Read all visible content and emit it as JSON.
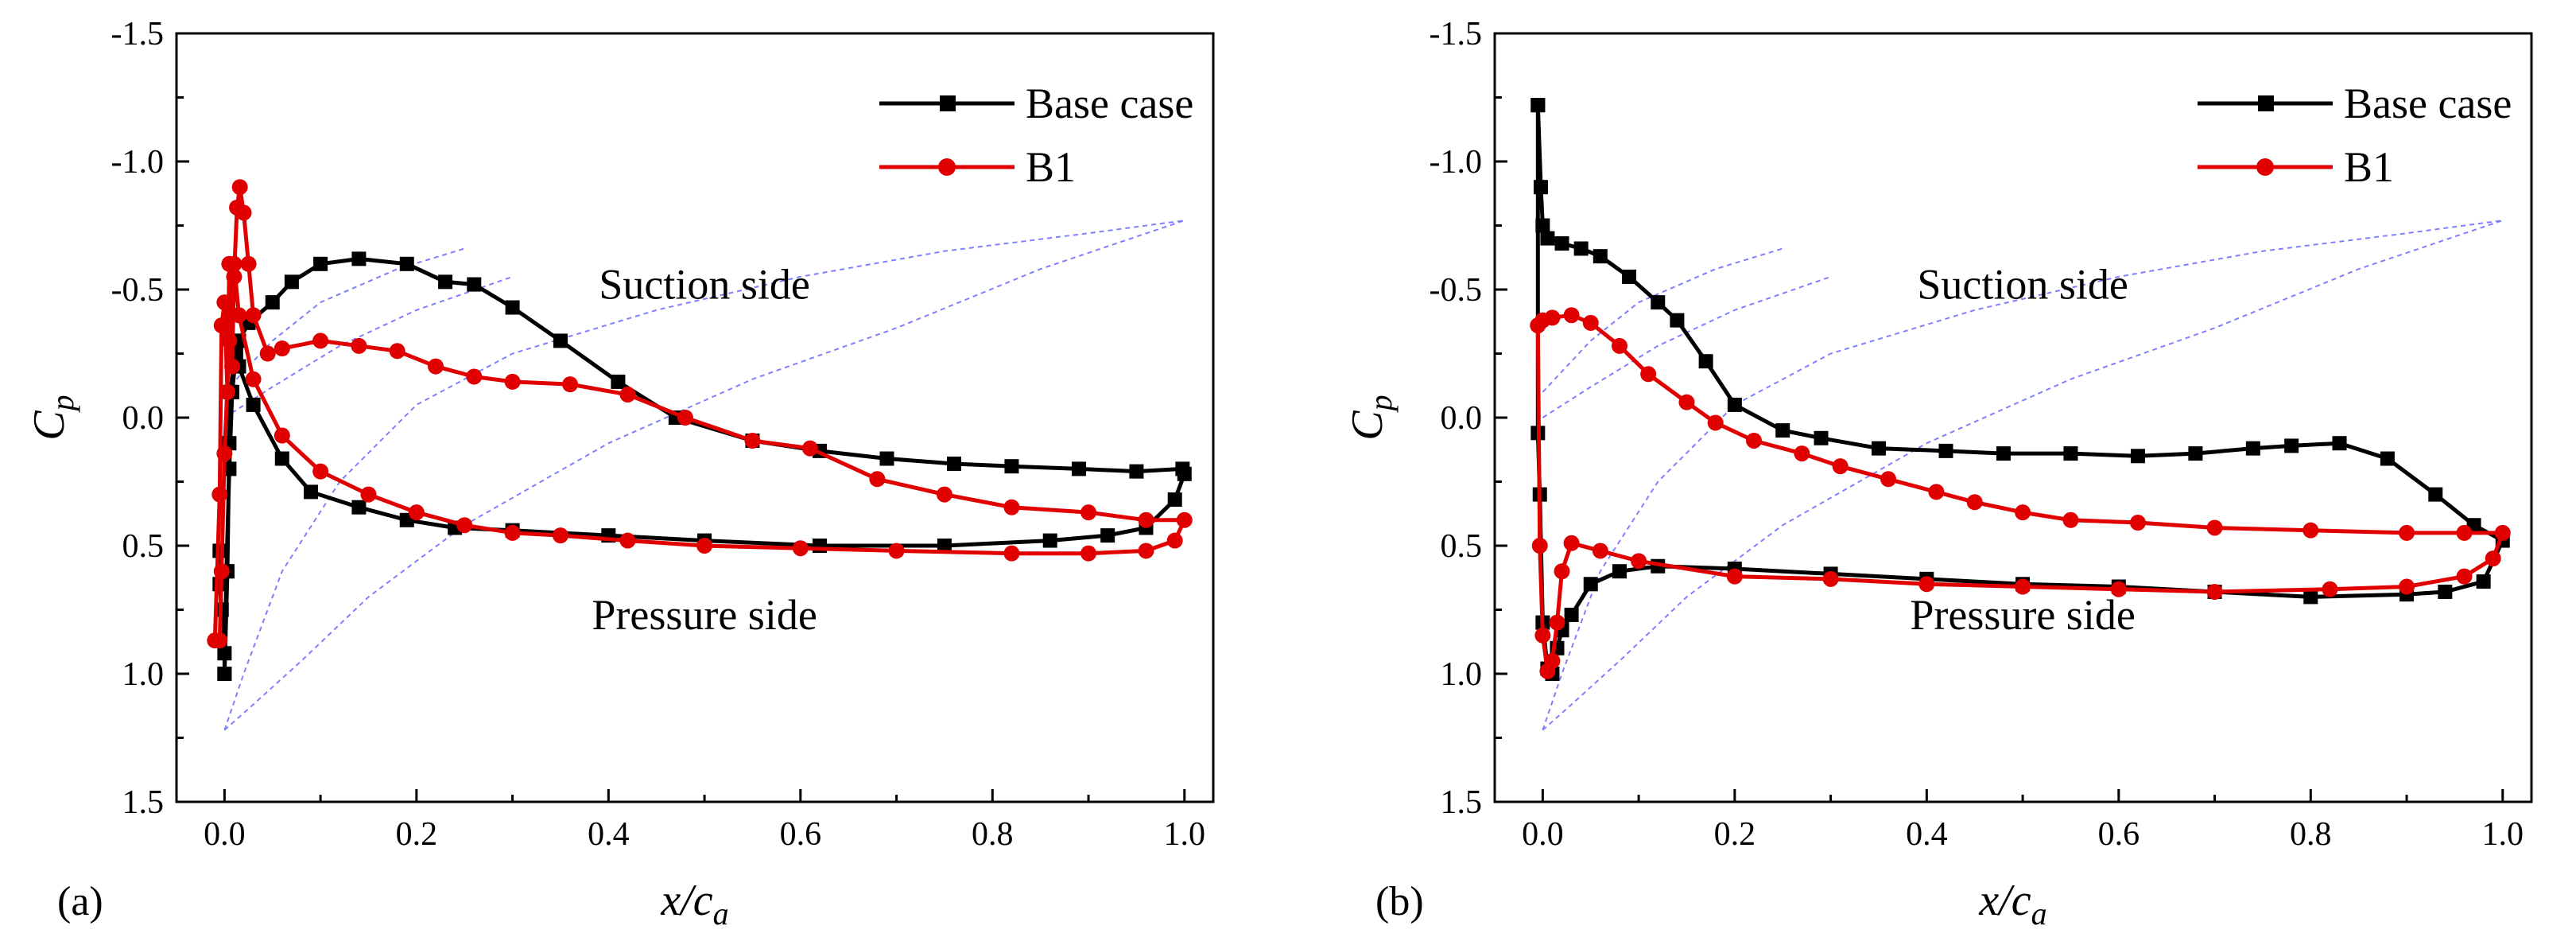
{
  "chart_data": [
    {
      "type": "line",
      "panel_label": "(a)",
      "xlabel": "x/c",
      "xlabel_sub": "a",
      "ylabel": "C",
      "ylabel_sub": "p",
      "xlim": [
        -0.05,
        1.03
      ],
      "ylim": [
        -1.5,
        1.5
      ],
      "y_inverted": true,
      "x_ticks": [
        "0.0",
        "0.2",
        "0.4",
        "0.6",
        "0.8",
        "1.0"
      ],
      "y_ticks": [
        "-1.5",
        "-1.0",
        "-0.5",
        "0.0",
        "0.5",
        "1.0",
        "1.5"
      ],
      "grid": false,
      "legend_position": "top-right",
      "annotations": [
        "Suction side",
        "Pressure side"
      ],
      "series": [
        {
          "name": "Base case",
          "color": "#000000",
          "marker": "square",
          "points": [
            [
              -0.005,
              0.52
            ],
            [
              -0.005,
              0.65
            ],
            [
              -0.003,
              0.75
            ],
            [
              0.0,
              0.92
            ],
            [
              0.0,
              1.0
            ],
            [
              0.003,
              0.6
            ],
            [
              0.005,
              0.1
            ],
            [
              0.006,
              -0.1
            ],
            [
              0.01,
              -0.22
            ],
            [
              0.015,
              -0.3
            ],
            [
              0.025,
              -0.37
            ],
            [
              0.05,
              -0.45
            ],
            [
              0.07,
              -0.53
            ],
            [
              0.1,
              -0.6
            ],
            [
              0.14,
              -0.62
            ],
            [
              0.19,
              -0.6
            ],
            [
              0.23,
              -0.53
            ],
            [
              0.26,
              -0.52
            ],
            [
              0.3,
              -0.43
            ],
            [
              0.35,
              -0.3
            ],
            [
              0.41,
              -0.14
            ],
            [
              0.47,
              0.0
            ],
            [
              0.55,
              0.09
            ],
            [
              0.62,
              0.13
            ],
            [
              0.69,
              0.16
            ],
            [
              0.76,
              0.18
            ],
            [
              0.82,
              0.19
            ],
            [
              0.89,
              0.2
            ],
            [
              0.95,
              0.21
            ],
            [
              0.998,
              0.2
            ],
            [
              1.0,
              0.22
            ],
            [
              0.99,
              0.32
            ],
            [
              0.96,
              0.43
            ],
            [
              0.92,
              0.46
            ],
            [
              0.86,
              0.48
            ],
            [
              0.75,
              0.5
            ],
            [
              0.62,
              0.5
            ],
            [
              0.5,
              0.48
            ],
            [
              0.4,
              0.46
            ],
            [
              0.3,
              0.44
            ],
            [
              0.24,
              0.43
            ],
            [
              0.19,
              0.4
            ],
            [
              0.14,
              0.35
            ],
            [
              0.09,
              0.29
            ],
            [
              0.06,
              0.16
            ],
            [
              0.03,
              -0.05
            ],
            [
              0.015,
              -0.2
            ],
            [
              0.01,
              -0.3
            ],
            [
              0.012,
              -0.25
            ],
            [
              0.008,
              -0.1
            ],
            [
              0.005,
              0.2
            ],
            [
              0.002,
              0.6
            ],
            [
              0.0,
              1.0
            ]
          ]
        },
        {
          "name": "B1",
          "color": "#e00000",
          "marker": "circle",
          "points": [
            [
              -0.01,
              0.87
            ],
            [
              -0.005,
              0.3
            ],
            [
              -0.003,
              -0.36
            ],
            [
              0.0,
              -0.45
            ],
            [
              0.003,
              -0.1
            ],
            [
              0.005,
              -0.6
            ],
            [
              0.008,
              -0.2
            ],
            [
              0.01,
              -0.55
            ],
            [
              0.013,
              -0.82
            ],
            [
              0.016,
              -0.9
            ],
            [
              0.02,
              -0.8
            ],
            [
              0.025,
              -0.6
            ],
            [
              0.03,
              -0.4
            ],
            [
              0.045,
              -0.25
            ],
            [
              0.06,
              -0.27
            ],
            [
              0.1,
              -0.3
            ],
            [
              0.14,
              -0.28
            ],
            [
              0.18,
              -0.26
            ],
            [
              0.22,
              -0.2
            ],
            [
              0.26,
              -0.16
            ],
            [
              0.3,
              -0.14
            ],
            [
              0.36,
              -0.13
            ],
            [
              0.42,
              -0.09
            ],
            [
              0.48,
              0.0
            ],
            [
              0.55,
              0.09
            ],
            [
              0.61,
              0.12
            ],
            [
              0.68,
              0.24
            ],
            [
              0.75,
              0.3
            ],
            [
              0.82,
              0.35
            ],
            [
              0.9,
              0.37
            ],
            [
              0.96,
              0.4
            ],
            [
              1.0,
              0.4
            ],
            [
              0.99,
              0.48
            ],
            [
              0.96,
              0.52
            ],
            [
              0.9,
              0.53
            ],
            [
              0.82,
              0.53
            ],
            [
              0.7,
              0.52
            ],
            [
              0.6,
              0.51
            ],
            [
              0.5,
              0.5
            ],
            [
              0.42,
              0.48
            ],
            [
              0.35,
              0.46
            ],
            [
              0.3,
              0.45
            ],
            [
              0.25,
              0.42
            ],
            [
              0.2,
              0.37
            ],
            [
              0.15,
              0.3
            ],
            [
              0.1,
              0.21
            ],
            [
              0.06,
              0.07
            ],
            [
              0.03,
              -0.15
            ],
            [
              0.015,
              -0.4
            ],
            [
              0.01,
              -0.6
            ],
            [
              0.005,
              -0.3
            ],
            [
              0.0,
              0.14
            ],
            [
              -0.003,
              0.6
            ],
            [
              -0.005,
              0.87
            ]
          ]
        }
      ]
    },
    {
      "type": "line",
      "panel_label": "(b)",
      "xlabel": "x/c",
      "xlabel_sub": "a",
      "ylabel": "C",
      "ylabel_sub": "p",
      "xlim": [
        -0.05,
        1.03
      ],
      "ylim": [
        -1.5,
        1.5
      ],
      "y_inverted": true,
      "x_ticks": [
        "0.0",
        "0.2",
        "0.4",
        "0.6",
        "0.8",
        "1.0"
      ],
      "y_ticks": [
        "-1.5",
        "-1.0",
        "-0.5",
        "0.0",
        "0.5",
        "1.0",
        "1.5"
      ],
      "grid": false,
      "legend_position": "top-right",
      "annotations": [
        "Suction side",
        "Pressure side"
      ],
      "series": [
        {
          "name": "Base case",
          "color": "#000000",
          "marker": "square",
          "points": [
            [
              -0.005,
              -1.22
            ],
            [
              -0.002,
              -0.9
            ],
            [
              0.0,
              -0.75
            ],
            [
              0.005,
              -0.7
            ],
            [
              0.02,
              -0.68
            ],
            [
              0.04,
              -0.66
            ],
            [
              0.06,
              -0.63
            ],
            [
              0.09,
              -0.55
            ],
            [
              0.12,
              -0.45
            ],
            [
              0.14,
              -0.38
            ],
            [
              0.17,
              -0.22
            ],
            [
              0.2,
              -0.05
            ],
            [
              0.25,
              0.05
            ],
            [
              0.29,
              0.08
            ],
            [
              0.35,
              0.12
            ],
            [
              0.42,
              0.13
            ],
            [
              0.48,
              0.14
            ],
            [
              0.55,
              0.14
            ],
            [
              0.62,
              0.15
            ],
            [
              0.68,
              0.14
            ],
            [
              0.74,
              0.12
            ],
            [
              0.78,
              0.11
            ],
            [
              0.83,
              0.1
            ],
            [
              0.88,
              0.16
            ],
            [
              0.93,
              0.3
            ],
            [
              0.97,
              0.42
            ],
            [
              1.0,
              0.48
            ],
            [
              0.98,
              0.64
            ],
            [
              0.94,
              0.68
            ],
            [
              0.9,
              0.69
            ],
            [
              0.8,
              0.7
            ],
            [
              0.7,
              0.68
            ],
            [
              0.6,
              0.66
            ],
            [
              0.5,
              0.65
            ],
            [
              0.4,
              0.63
            ],
            [
              0.3,
              0.61
            ],
            [
              0.2,
              0.59
            ],
            [
              0.12,
              0.58
            ],
            [
              0.08,
              0.6
            ],
            [
              0.05,
              0.65
            ],
            [
              0.03,
              0.77
            ],
            [
              0.02,
              0.83
            ],
            [
              0.015,
              0.9
            ],
            [
              0.01,
              1.0
            ],
            [
              0.005,
              0.98
            ],
            [
              0.0,
              0.8
            ],
            [
              -0.003,
              0.3
            ],
            [
              -0.005,
              0.06
            ],
            [
              -0.005,
              -1.22
            ]
          ]
        },
        {
          "name": "B1",
          "color": "#e00000",
          "marker": "circle",
          "points": [
            [
              -0.005,
              -0.36
            ],
            [
              0.0,
              -0.38
            ],
            [
              0.01,
              -0.39
            ],
            [
              0.03,
              -0.4
            ],
            [
              0.05,
              -0.37
            ],
            [
              0.08,
              -0.28
            ],
            [
              0.11,
              -0.17
            ],
            [
              0.15,
              -0.06
            ],
            [
              0.18,
              0.02
            ],
            [
              0.22,
              0.09
            ],
            [
              0.27,
              0.14
            ],
            [
              0.31,
              0.19
            ],
            [
              0.36,
              0.24
            ],
            [
              0.41,
              0.29
            ],
            [
              0.45,
              0.33
            ],
            [
              0.5,
              0.37
            ],
            [
              0.55,
              0.4
            ],
            [
              0.62,
              0.41
            ],
            [
              0.7,
              0.43
            ],
            [
              0.8,
              0.44
            ],
            [
              0.9,
              0.45
            ],
            [
              0.96,
              0.45
            ],
            [
              1.0,
              0.45
            ],
            [
              0.99,
              0.55
            ],
            [
              0.96,
              0.62
            ],
            [
              0.9,
              0.66
            ],
            [
              0.82,
              0.67
            ],
            [
              0.7,
              0.68
            ],
            [
              0.6,
              0.67
            ],
            [
              0.5,
              0.66
            ],
            [
              0.4,
              0.65
            ],
            [
              0.3,
              0.63
            ],
            [
              0.2,
              0.62
            ],
            [
              0.1,
              0.56
            ],
            [
              0.06,
              0.52
            ],
            [
              0.03,
              0.49
            ],
            [
              0.02,
              0.6
            ],
            [
              0.015,
              0.8
            ],
            [
              0.01,
              0.95
            ],
            [
              0.005,
              0.99
            ],
            [
              0.0,
              0.85
            ],
            [
              -0.003,
              0.5
            ],
            [
              -0.005,
              -0.36
            ]
          ]
        }
      ]
    }
  ]
}
